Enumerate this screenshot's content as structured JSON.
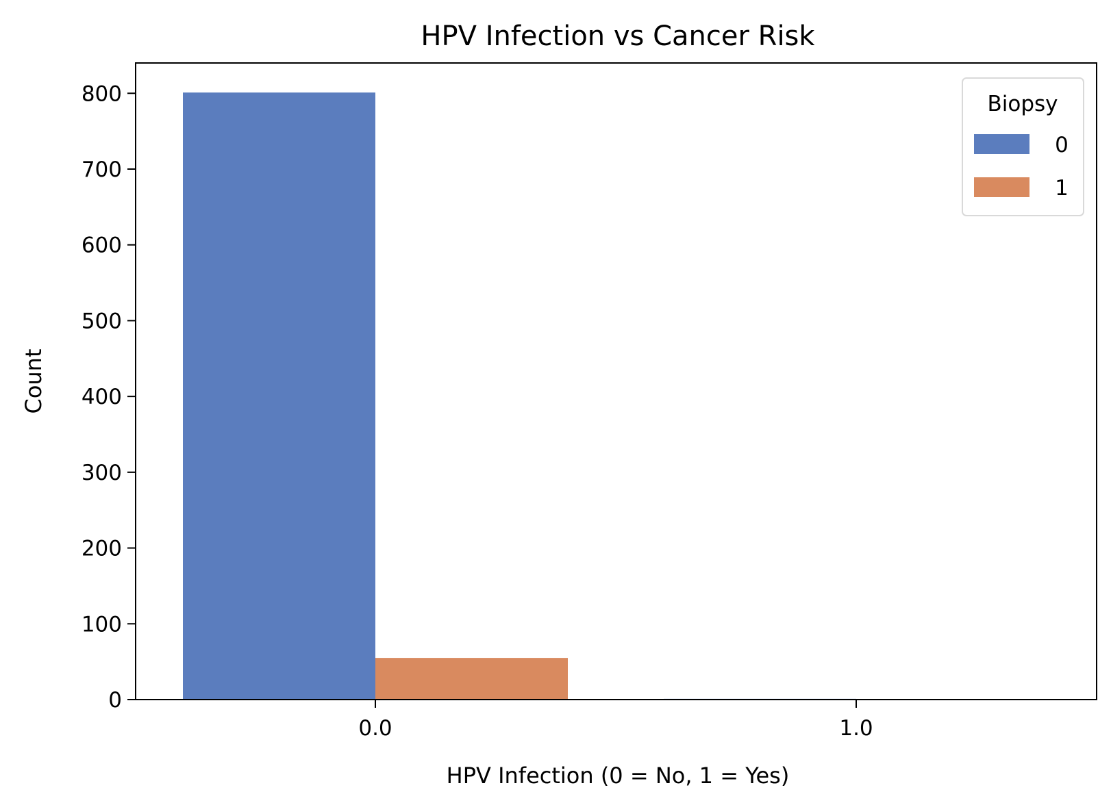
{
  "chart_data": {
    "type": "bar",
    "title": "HPV Infection vs Cancer Risk",
    "xlabel": "HPV Infection (0 = No, 1 = Yes)",
    "ylabel": "Count",
    "categories": [
      "0.0",
      "1.0"
    ],
    "ylim": [
      0,
      840
    ],
    "yticks": [
      0,
      100,
      200,
      300,
      400,
      500,
      600,
      700,
      800
    ],
    "legend": {
      "title": "Biopsy",
      "position": "top-right"
    },
    "series": [
      {
        "name": "0",
        "color": "#5b7dbe",
        "values": [
          801,
          1
        ]
      },
      {
        "name": "1",
        "color": "#d98a5f",
        "values": [
          55,
          0
        ]
      }
    ]
  }
}
